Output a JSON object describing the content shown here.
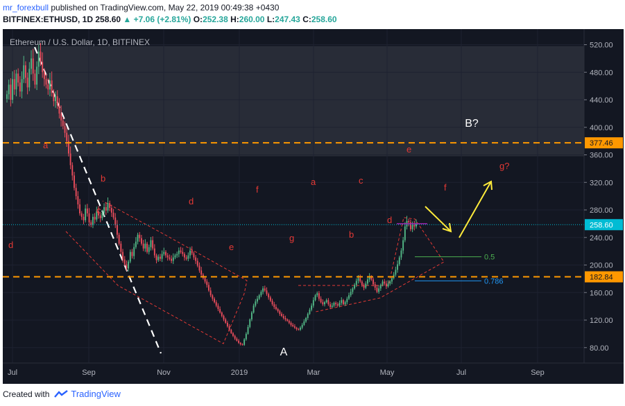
{
  "header": {
    "user": "mr_forexbull",
    "published_text": "published on TradingView.com, May 22, 2019 00:49:38 +0430",
    "symbol": "BITFINEX:ETHUSD, 1D",
    "price": "258.60",
    "change_arrow": "▲",
    "change": "+7.06 (+2.81%)",
    "o_label": "O:",
    "o": "252.38",
    "h_label": "H:",
    "h": "260.00",
    "l_label": "L:",
    "l": "247.43",
    "c_label": "C:",
    "c": "258.60"
  },
  "chart_title": "Ethereum / U.S. Dollar, 1D, BITFINEX",
  "footer": {
    "created_with": "Created with",
    "brand": "TradingView"
  },
  "colors": {
    "background": "#131722",
    "bull": "#53b987",
    "bear": "#eb4d5c",
    "level": "#ff9800",
    "pattern": "#e53935",
    "arrow": "#ffeb3b",
    "current_price": "#00bcd4",
    "fib_05": "#4caf50",
    "fib_0786": "#2196f3"
  },
  "chart_data": {
    "type": "candlestick",
    "x_labels": [
      "Jul",
      "Sep",
      "Nov",
      "2019",
      "Mar",
      "May",
      "Jul",
      "Sep"
    ],
    "y_ticks": [
      80,
      120,
      160,
      200,
      240,
      280,
      320,
      360,
      400,
      440,
      480,
      520
    ],
    "ylim": [
      65,
      530
    ],
    "price_labels": [
      {
        "value": 377.46,
        "text": "377.46",
        "color": "#ff9800"
      },
      {
        "value": 258.6,
        "text": "258.60",
        "color": "#00bcd4"
      },
      {
        "value": 182.84,
        "text": "182.84",
        "color": "#ff9800"
      }
    ],
    "horizontal_levels": [
      377.46,
      182.84
    ],
    "current_price": 258.6,
    "shaded_zone": [
      358,
      518
    ],
    "fib_levels": [
      {
        "label": "0.5",
        "value": 212
      },
      {
        "label": "0.786",
        "value": 177
      }
    ],
    "wave_labels": [
      {
        "text": "d",
        "near": 358
      },
      {
        "text": "a",
        "near": 244
      },
      {
        "text": "b",
        "near": 338
      },
      {
        "text": "c",
        "near": 167
      },
      {
        "text": "d",
        "near": 246
      },
      {
        "text": "e",
        "near": 77
      },
      {
        "text": "f",
        "near": 187
      },
      {
        "text": "g",
        "near": 88
      },
      {
        "text": "a",
        "near": 190
      },
      {
        "text": "b",
        "near": 143
      },
      {
        "text": "c",
        "near": 195
      },
      {
        "text": "d",
        "near": 160
      },
      {
        "text": "e",
        "near": 287
      },
      {
        "text": "f",
        "near": 184
      },
      {
        "text": "g?",
        "near": 337
      }
    ],
    "big_labels": [
      {
        "text": "A",
        "near": 70
      },
      {
        "text": "B?",
        "near": 402
      }
    ],
    "closes": [
      448,
      462,
      440,
      470,
      455,
      478,
      465,
      452,
      470,
      490,
      472,
      458,
      485,
      500,
      478,
      462,
      488,
      510,
      495,
      480,
      470,
      462,
      455,
      468,
      450,
      438,
      445,
      432,
      420,
      410,
      402,
      392,
      380,
      362,
      345,
      330,
      312,
      300,
      288,
      275,
      270,
      265,
      282,
      275,
      262,
      258,
      270,
      266,
      278,
      272,
      268,
      276,
      284,
      279,
      290,
      283,
      276,
      269,
      258,
      244,
      231,
      219,
      208,
      201,
      195,
      205,
      219,
      213,
      226,
      234,
      244,
      239,
      231,
      224,
      231,
      219,
      226,
      236,
      224,
      214,
      207,
      212,
      209,
      216,
      219,
      214,
      211,
      209,
      206,
      211,
      214,
      216,
      221,
      219,
      216,
      211,
      209,
      214,
      221,
      217,
      211,
      206,
      199,
      192,
      186,
      181,
      176,
      171,
      163,
      156,
      151,
      146,
      141,
      136,
      131,
      126,
      121,
      116,
      111,
      106,
      101,
      97,
      93,
      90,
      87,
      85,
      84,
      92,
      100,
      110,
      121,
      131,
      141,
      147,
      151,
      156,
      161,
      166,
      163,
      158,
      153,
      148,
      143,
      139,
      136,
      133,
      129,
      126,
      123,
      121,
      119,
      116,
      113,
      111,
      109,
      107,
      106,
      109,
      113,
      118,
      123,
      129,
      135,
      141,
      149,
      156,
      159,
      151,
      146,
      143,
      146,
      149,
      143,
      139,
      141,
      145,
      143,
      141,
      145,
      149,
      143,
      146,
      151,
      156,
      161,
      166,
      171,
      177,
      181,
      176,
      171,
      167,
      173,
      179,
      183,
      179,
      172,
      167,
      161,
      166,
      171,
      176,
      173,
      169,
      173,
      176,
      181,
      186,
      193,
      201,
      211,
      221,
      236,
      256,
      264,
      262,
      252,
      258,
      256,
      259
    ]
  }
}
